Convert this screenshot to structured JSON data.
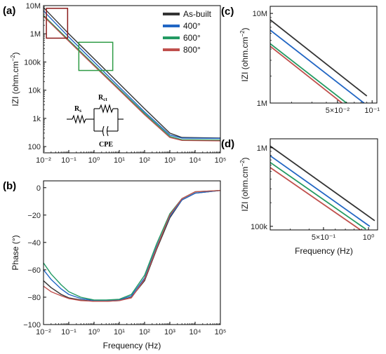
{
  "colors": {
    "As-built": "#333333",
    "400°": "#2166c4",
    "600°": "#239a63",
    "800°": "#c0504d"
  },
  "circuit": {
    "rs": "R",
    "rs_sub": "s",
    "rct": "R",
    "rct_sub": "ct",
    "cpe": "CPE"
  },
  "chart_data": [
    {
      "id": "a",
      "panel_label": "(a)",
      "type": "line",
      "xscale": "log",
      "yscale": "log",
      "xlim": [
        0.01,
        100000
      ],
      "ylim": [
        60,
        10000000
      ],
      "xticks": [
        0.01,
        0.1,
        1,
        10,
        100,
        1000,
        10000,
        100000
      ],
      "xticklabels": [
        "10⁻²",
        "10⁻¹",
        "10⁰",
        "10¹",
        "10²",
        "10³",
        "10⁴",
        "10⁵"
      ],
      "yticks": [
        100,
        1000,
        10000,
        100000,
        1000000,
        10000000
      ],
      "yticklabels": [
        "100",
        "1k",
        "10k",
        "100k",
        "1M",
        "10M"
      ],
      "xlabel": "",
      "ylabel_main": "IZI (ohm.cm",
      "ylabel_sup": "−2",
      "ylabel_close": ")",
      "legend": {
        "position": "top-right",
        "entries": [
          "As-built",
          "400°",
          "600°",
          "800°"
        ]
      },
      "series": [
        {
          "name": "As-built",
          "x": [
            0.01,
            0.1,
            1,
            10,
            100,
            1000,
            3000,
            100000
          ],
          "y": [
            8500000,
            1000000,
            130000,
            17000,
            2200,
            300,
            210,
            200
          ]
        },
        {
          "name": "400°",
          "x": [
            0.01,
            0.1,
            1,
            10,
            100,
            1000,
            3000,
            100000
          ],
          "y": [
            6500000,
            770000,
            100000,
            13000,
            1700,
            260,
            200,
            195
          ]
        },
        {
          "name": "600°",
          "x": [
            0.01,
            0.1,
            1,
            10,
            100,
            1000,
            3000,
            100000
          ],
          "y": [
            4500000,
            600000,
            80000,
            11000,
            1500,
            230,
            175,
            170
          ]
        },
        {
          "name": "800°",
          "x": [
            0.01,
            0.1,
            1,
            10,
            100,
            1000,
            3000,
            100000
          ],
          "y": [
            4200000,
            550000,
            73000,
            10000,
            1350,
            210,
            165,
            160
          ]
        }
      ],
      "annotations": [
        {
          "type": "box",
          "color": "#8b1a1a",
          "x": [
            0.013,
            0.09
          ],
          "y": [
            700000,
            8000000
          ]
        },
        {
          "type": "box",
          "color": "#2e9b45",
          "x": [
            0.25,
            5.5
          ],
          "y": [
            50000,
            500000
          ]
        }
      ]
    },
    {
      "id": "b",
      "panel_label": "(b)",
      "type": "line",
      "xscale": "log",
      "yscale": "linear",
      "xlim": [
        0.01,
        100000
      ],
      "ylim": [
        -100,
        5
      ],
      "xticks": [
        0.01,
        0.1,
        1,
        10,
        100,
        1000,
        10000,
        100000
      ],
      "xticklabels": [
        "10⁻²",
        "10⁻¹",
        "10⁰",
        "10¹",
        "10²",
        "10³",
        "10⁴",
        "10⁵"
      ],
      "yticks": [
        0,
        -20,
        -40,
        -60,
        -80,
        -100
      ],
      "yticklabels": [
        "0",
        "−20",
        "−40",
        "−60",
        "−80",
        "−100"
      ],
      "xlabel": "Frequency (Hz)",
      "ylabel": "Phase (°)",
      "series": [
        {
          "name": "As-built",
          "x": [
            0.01,
            0.02,
            0.05,
            0.1,
            0.3,
            1,
            3,
            10,
            30,
            100,
            300,
            1000,
            3000,
            10000,
            100000
          ],
          "y": [
            -68,
            -73,
            -78,
            -80.5,
            -82,
            -83,
            -83,
            -82.5,
            -80,
            -68,
            -45,
            -22,
            -9,
            -4,
            -2
          ]
        },
        {
          "name": "400°",
          "x": [
            0.01,
            0.02,
            0.05,
            0.1,
            0.3,
            1,
            3,
            10,
            30,
            100,
            300,
            1000,
            3000,
            10000,
            100000
          ],
          "y": [
            -60,
            -67,
            -74,
            -78,
            -81,
            -82.5,
            -82.5,
            -82,
            -79,
            -66,
            -43,
            -21,
            -9,
            -4,
            -2
          ]
        },
        {
          "name": "600°",
          "x": [
            0.01,
            0.02,
            0.05,
            0.1,
            0.3,
            1,
            3,
            10,
            30,
            100,
            300,
            1000,
            3000,
            10000,
            100000
          ],
          "y": [
            -55,
            -63,
            -71,
            -76,
            -80,
            -82,
            -82,
            -81.5,
            -78,
            -64,
            -41,
            -19,
            -8,
            -3,
            -2
          ]
        },
        {
          "name": "800°",
          "x": [
            0.01,
            0.02,
            0.05,
            0.1,
            0.3,
            1,
            3,
            10,
            30,
            100,
            300,
            1000,
            3000,
            10000,
            100000
          ],
          "y": [
            -72,
            -76,
            -79,
            -81,
            -82.5,
            -83,
            -83,
            -82.5,
            -80.5,
            -67,
            -44,
            -20,
            -8,
            -3,
            -2
          ]
        }
      ]
    },
    {
      "id": "c",
      "panel_label": "(c)",
      "type": "line",
      "xscale": "log",
      "yscale": "log",
      "xlim": [
        0.013,
        0.11
      ],
      "ylim": [
        1000000,
        12000000
      ],
      "xticks": [
        0.05,
        0.1
      ],
      "xticklabels": [
        "5×10⁻²",
        "10⁻¹"
      ],
      "yticks": [
        1000000,
        10000000
      ],
      "yticklabels": [
        "1M",
        "10M"
      ],
      "ylabel_main": "IZI (ohm.cm",
      "ylabel_sup": "−2",
      "ylabel_close": ")",
      "series": [
        {
          "name": "As-built",
          "x": [
            0.013,
            0.09
          ],
          "y": [
            8500000,
            1200000
          ]
        },
        {
          "name": "400°",
          "x": [
            0.013,
            0.085
          ],
          "y": [
            6500000,
            1000000
          ]
        },
        {
          "name": "600°",
          "x": [
            0.013,
            0.075
          ],
          "y": [
            4600000,
            800000
          ]
        },
        {
          "name": "800°",
          "x": [
            0.013,
            0.07
          ],
          "y": [
            4300000,
            780000
          ]
        }
      ]
    },
    {
      "id": "d",
      "panel_label": "(d)",
      "type": "line",
      "xscale": "log",
      "yscale": "log",
      "xlim": [
        0.22,
        1.15
      ],
      "ylim": [
        90000,
        1300000
      ],
      "xticks": [
        0.5,
        1
      ],
      "xticklabels": [
        "5×10⁻¹",
        "10⁰"
      ],
      "yticks": [
        100000,
        1000000
      ],
      "yticklabels": [
        "100k",
        "1M"
      ],
      "xlabel": "Frequency (Hz)",
      "ylabel_main": "IZI (ohm.cm",
      "ylabel_sup": "−2",
      "ylabel_close": ")",
      "series": [
        {
          "name": "As-built",
          "x": [
            0.22,
            1.1
          ],
          "y": [
            1050000,
            118000
          ]
        },
        {
          "name": "400°",
          "x": [
            0.22,
            1.02
          ],
          "y": [
            790000,
            100000
          ]
        },
        {
          "name": "600°",
          "x": [
            0.22,
            0.96
          ],
          "y": [
            650000,
            92000
          ]
        },
        {
          "name": "800°",
          "x": [
            0.22,
            0.9
          ],
          "y": [
            560000,
            88000
          ]
        }
      ]
    }
  ]
}
